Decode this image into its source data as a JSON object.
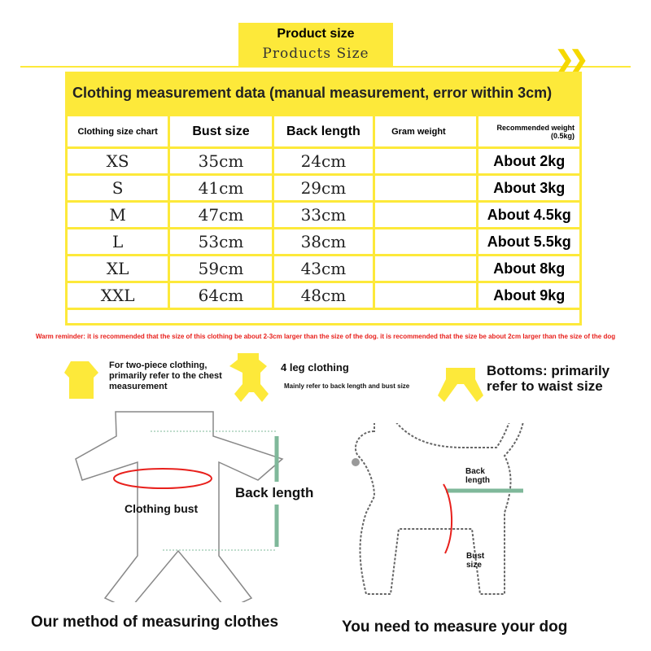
{
  "header": {
    "title": "Product size",
    "subtitle": "Products Size"
  },
  "table": {
    "title": "Clothing measurement data (manual measurement, error within 3cm)",
    "columns": [
      "Clothing size chart",
      "Bust size",
      "Back length",
      "Gram weight",
      "Recommended weight",
      "(0.5kg)"
    ],
    "rows": [
      {
        "size": "XS",
        "bust": "35cm",
        "back": "24cm",
        "gram": "",
        "rec": "About 2kg"
      },
      {
        "size": "S",
        "bust": "41cm",
        "back": "29cm",
        "gram": "",
        "rec": "About 3kg"
      },
      {
        "size": "M",
        "bust": "47cm",
        "back": "33cm",
        "gram": "",
        "rec": "About 4.5kg"
      },
      {
        "size": "L",
        "bust": "53cm",
        "back": "38cm",
        "gram": "",
        "rec": "About 5.5kg"
      },
      {
        "size": "XL",
        "bust": "59cm",
        "back": "43cm",
        "gram": "",
        "rec": "About 8kg"
      },
      {
        "size": "XXL",
        "bust": "64cm",
        "back": "48cm",
        "gram": "",
        "rec": "About 9kg"
      }
    ]
  },
  "warning": "Warm reminder: it is recommended that the size of this clothing be about 2-3cm larger than the size of the dog. it is recommended that the size be about 2cm larger than the size of the dog",
  "types": {
    "two_piece": "For two-piece clothing, primarily refer to the chest measurement",
    "four_leg": "4 leg clothing",
    "four_leg_note": "Mainly refer to back length and bust size",
    "bottoms": "Bottoms: primarily refer to waist size"
  },
  "clothes": {
    "back_length": "Back length",
    "bust": "Clothing bust",
    "caption": "Our method of measuring clothes"
  },
  "dog": {
    "back_length": "Back length",
    "bust": "Bust size",
    "caption": "You need to measure your dog"
  },
  "colors": {
    "accent": "#fde93a",
    "warning": "#e8201c"
  }
}
